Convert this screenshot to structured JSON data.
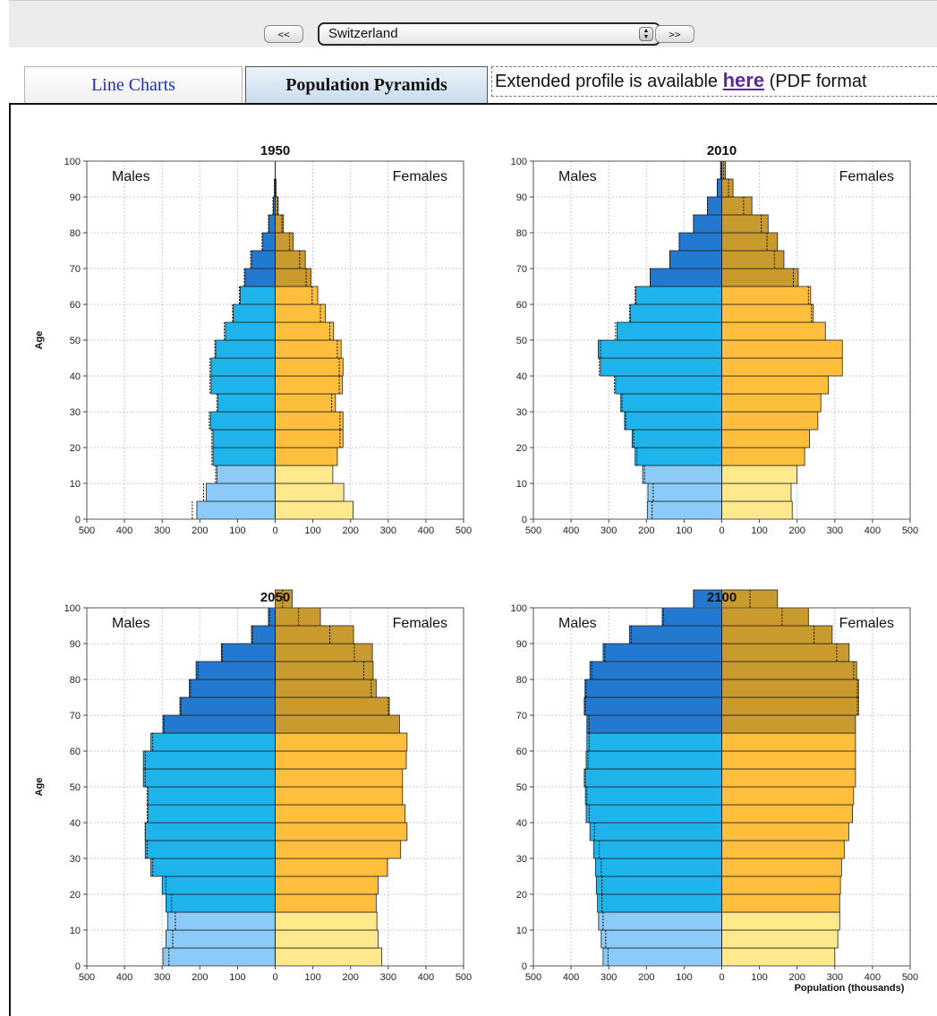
{
  "toolbar": {
    "prev_label": "<<",
    "next_label": ">>",
    "country_selected": "Switzerland"
  },
  "tabs": {
    "line_charts": "Line Charts",
    "population_pyramids": "Population Pyramids"
  },
  "profile_note": {
    "prefix": "Extended profile is available ",
    "link_text": "here",
    "suffix": " (PDF format"
  },
  "colors": {
    "males_young": "#8ccbf7",
    "males_working": "#1fb3ec",
    "males_old": "#2379cf",
    "females_young": "#ffe98c",
    "females_working": "#ffbe3c",
    "females_old": "#c99a2e"
  },
  "chart_data": [
    {
      "type": "bar",
      "title": "1950",
      "ylabel": "Age",
      "xlabel": "",
      "left_label": "Males",
      "right_label": "Females",
      "age_groups": [
        0,
        5,
        10,
        15,
        20,
        25,
        30,
        35,
        40,
        45,
        50,
        55,
        60,
        65,
        70,
        75,
        80,
        85,
        90,
        95,
        100
      ],
      "males": [
        208,
        183,
        155,
        165,
        165,
        172,
        152,
        170,
        170,
        158,
        132,
        111,
        93,
        80,
        63,
        33,
        17,
        5,
        2,
        0,
        0
      ],
      "females": [
        207,
        182,
        153,
        165,
        180,
        180,
        160,
        178,
        180,
        175,
        155,
        133,
        113,
        95,
        80,
        48,
        22,
        8,
        2,
        0,
        0
      ],
      "males_dotted": [
        220,
        190,
        158,
        168,
        168,
        175,
        155,
        173,
        173,
        160,
        135,
        113,
        95,
        82,
        65,
        35,
        18,
        6,
        2,
        0,
        0
      ],
      "females_dotted": [
        0,
        0,
        0,
        0,
        172,
        172,
        150,
        170,
        170,
        165,
        145,
        120,
        98,
        82,
        65,
        38,
        18,
        6,
        2,
        0,
        0
      ],
      "xticks": [
        500,
        400,
        300,
        200,
        100,
        0,
        100,
        200,
        300,
        400,
        500
      ],
      "yticks": [
        0,
        10,
        20,
        30,
        40,
        50,
        60,
        70,
        80,
        90,
        100
      ],
      "xlim": [
        -500,
        500
      ],
      "ylim": [
        0,
        100
      ]
    },
    {
      "type": "bar",
      "title": "2010",
      "ylabel": "",
      "xlabel": "",
      "left_label": "Males",
      "right_label": "Females",
      "age_groups": [
        0,
        5,
        10,
        15,
        20,
        25,
        30,
        35,
        40,
        45,
        50,
        55,
        60,
        65,
        70,
        75,
        80,
        85,
        90,
        95,
        100
      ],
      "males": [
        197,
        196,
        210,
        230,
        238,
        258,
        268,
        282,
        322,
        328,
        278,
        243,
        228,
        190,
        138,
        113,
        75,
        38,
        12,
        3,
        0
      ],
      "females": [
        187,
        184,
        200,
        220,
        233,
        255,
        263,
        283,
        320,
        320,
        275,
        243,
        236,
        203,
        165,
        148,
        123,
        80,
        30,
        10,
        0
      ],
      "males_dotted": [
        185,
        182,
        205,
        225,
        234,
        255,
        265,
        285,
        325,
        322,
        282,
        245,
        230,
        190,
        138,
        113,
        75,
        38,
        12,
        3,
        0
      ],
      "females_dotted": [
        0,
        0,
        0,
        0,
        0,
        0,
        0,
        0,
        0,
        0,
        0,
        238,
        230,
        190,
        140,
        120,
        105,
        58,
        18,
        5,
        0
      ],
      "xticks": [
        500,
        400,
        300,
        200,
        100,
        0,
        100,
        200,
        300,
        400,
        500
      ],
      "yticks": [
        0,
        10,
        20,
        30,
        40,
        50,
        60,
        70,
        80,
        90,
        100
      ],
      "xlim": [
        -500,
        500
      ],
      "ylim": [
        0,
        100
      ]
    },
    {
      "type": "bar",
      "title": "2050",
      "ylabel": "Age",
      "xlabel": "",
      "left_label": "Males",
      "right_label": "Females",
      "age_groups": [
        0,
        5,
        10,
        15,
        20,
        25,
        30,
        35,
        40,
        45,
        50,
        55,
        60,
        65,
        70,
        75,
        80,
        85,
        90,
        95,
        100
      ],
      "males": [
        298,
        290,
        285,
        290,
        300,
        330,
        345,
        345,
        338,
        338,
        350,
        350,
        330,
        298,
        253,
        228,
        210,
        143,
        63,
        18,
        0
      ],
      "females": [
        283,
        273,
        270,
        268,
        273,
        298,
        333,
        350,
        345,
        338,
        338,
        348,
        350,
        330,
        303,
        268,
        260,
        258,
        208,
        120,
        45
      ],
      "males_dotted": [
        282,
        272,
        265,
        275,
        290,
        325,
        340,
        345,
        340,
        340,
        345,
        345,
        325,
        295,
        250,
        225,
        205,
        140,
        60,
        15,
        0
      ],
      "females_dotted": [
        0,
        0,
        0,
        0,
        0,
        0,
        0,
        0,
        0,
        0,
        0,
        0,
        0,
        0,
        300,
        255,
        235,
        210,
        145,
        62,
        20
      ],
      "xticks": [
        500,
        400,
        300,
        200,
        100,
        0,
        100,
        200,
        300,
        400,
        500
      ],
      "yticks": [
        0,
        10,
        20,
        30,
        40,
        50,
        60,
        70,
        80,
        90,
        100
      ],
      "xlim": [
        -500,
        500
      ],
      "ylim": [
        0,
        100
      ]
    },
    {
      "type": "bar",
      "title": "2100",
      "ylabel": "",
      "xlabel": "Population (thousands)",
      "left_label": "Males",
      "right_label": "Females",
      "age_groups": [
        0,
        5,
        10,
        15,
        20,
        25,
        30,
        35,
        40,
        45,
        50,
        55,
        60,
        65,
        70,
        75,
        80,
        85,
        90,
        95,
        100
      ],
      "males": [
        315,
        320,
        327,
        330,
        333,
        335,
        340,
        350,
        360,
        362,
        365,
        360,
        358,
        358,
        365,
        363,
        350,
        315,
        245,
        158,
        75
      ],
      "females": [
        300,
        308,
        313,
        313,
        315,
        318,
        325,
        337,
        347,
        350,
        355,
        355,
        355,
        355,
        363,
        363,
        358,
        338,
        293,
        230,
        148
      ],
      "males_dotted": [
        302,
        308,
        315,
        318,
        318,
        320,
        325,
        338,
        352,
        358,
        362,
        355,
        352,
        352,
        362,
        360,
        345,
        310,
        240,
        155,
        75
      ],
      "females_dotted": [
        0,
        0,
        0,
        0,
        0,
        0,
        0,
        0,
        0,
        0,
        0,
        0,
        0,
        0,
        360,
        360,
        350,
        305,
        245,
        160,
        75
      ],
      "xticks": [
        500,
        400,
        300,
        200,
        100,
        0,
        100,
        200,
        300,
        400,
        500
      ],
      "yticks": [
        0,
        10,
        20,
        30,
        40,
        50,
        60,
        70,
        80,
        90,
        100
      ],
      "xlim": [
        -500,
        500
      ],
      "ylim": [
        0,
        100
      ]
    }
  ]
}
